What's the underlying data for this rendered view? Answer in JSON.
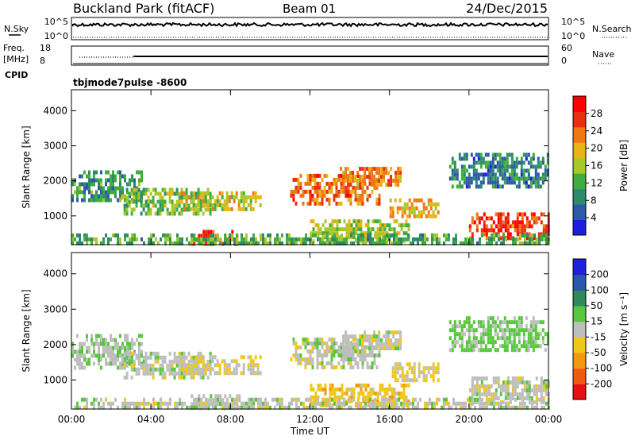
{
  "header": {
    "site": "Buckland Park (fitACF)",
    "beam": "Beam 01",
    "date": "24/Dec/2015"
  },
  "strip_labels": {
    "nsky": "N.Sky",
    "nsearch": "N.Search",
    "freq_line1": "Freq.",
    "freq_line2": "[MHz]",
    "nave": "Nave",
    "cpid": "CPID"
  },
  "strip_ticks": {
    "noise_left": [
      "10^5",
      "10^0"
    ],
    "noise_right": [
      "10^5",
      "10^0"
    ],
    "freq_left": [
      "18",
      "8"
    ],
    "nave_right": [
      "60",
      "0"
    ]
  },
  "cpid_label": "tbjmode7pulse  -8600",
  "colors": {
    "power": [
      "#1e1edc",
      "#2a5aa8",
      "#2f8a6a",
      "#3fae3f",
      "#a8c82a",
      "#e8b418",
      "#f07814",
      "#e83010",
      "#ff0000"
    ],
    "velocity": [
      "#e81010",
      "#f05a14",
      "#f09a14",
      "#f0c818",
      "#bebebe",
      "#56c83c",
      "#2e8a5a",
      "#2a58a8",
      "#2020d8"
    ]
  },
  "chart_data": [
    {
      "type": "heatmap",
      "name": "power",
      "ylabel": "Slant Range [km]",
      "yticks": [
        "1000",
        "2000",
        "3000",
        "4000"
      ],
      "ylim": [
        180,
        4600
      ],
      "xticks": [
        "00:00",
        "04:00",
        "08:00",
        "12:00",
        "16:00",
        "20:00",
        "00:00"
      ],
      "colorbar_label": "Power [dB]",
      "colorbar_ticks": [
        "4",
        "8",
        "12",
        "16",
        "20",
        "24",
        "28"
      ],
      "colorbar_range": [
        0,
        32
      ],
      "echo_bands": [
        {
          "t0": 0.0,
          "t1": 3.5,
          "r0": 1400,
          "r1": 2300,
          "level": 10
        },
        {
          "t0": 2.5,
          "t1": 7.0,
          "r0": 1100,
          "r1": 1800,
          "level": 14
        },
        {
          "t0": 5.5,
          "t1": 9.5,
          "r0": 1200,
          "r1": 1700,
          "level": 18
        },
        {
          "t0": 11.0,
          "t1": 15.5,
          "r0": 1400,
          "r1": 2200,
          "level": 24
        },
        {
          "t0": 13.5,
          "t1": 16.5,
          "r0": 1900,
          "r1": 2400,
          "level": 22
        },
        {
          "t0": 16.0,
          "t1": 18.5,
          "r0": 1000,
          "r1": 1500,
          "level": 20
        },
        {
          "t0": 20.0,
          "t1": 24.0,
          "r0": 400,
          "r1": 1100,
          "level": 26
        },
        {
          "t0": 6.0,
          "t1": 8.5,
          "r0": 200,
          "r1": 600,
          "level": 28
        },
        {
          "t0": 12.0,
          "t1": 17.0,
          "r0": 300,
          "r1": 900,
          "level": 16
        },
        {
          "t0": 0.0,
          "t1": 24.0,
          "r0": 180,
          "r1": 500,
          "level": 12
        },
        {
          "t0": 19.0,
          "t1": 24.0,
          "r0": 1800,
          "r1": 2800,
          "level": 8
        }
      ]
    },
    {
      "type": "heatmap",
      "name": "velocity",
      "ylabel": "Slant Range [km]",
      "yticks": [
        "1000",
        "2000",
        "3000",
        "4000"
      ],
      "ylim": [
        180,
        4600
      ],
      "xlabel": "Time UT",
      "xticks": [
        "00:00",
        "04:00",
        "08:00",
        "12:00",
        "16:00",
        "20:00",
        "00:00"
      ],
      "colorbar_label": "Velocity [m s⁻¹]",
      "colorbar_ticks": [
        "-200",
        "-100",
        "-50",
        "-15",
        "15",
        "50",
        "100",
        "200"
      ],
      "colorbar_range": [
        -250,
        250
      ],
      "echo_bands": [
        {
          "t0": 0.0,
          "t1": 3.5,
          "r0": 1400,
          "r1": 2300,
          "level": 15
        },
        {
          "t0": 2.5,
          "t1": 7.0,
          "r0": 1100,
          "r1": 1800,
          "level": 0
        },
        {
          "t0": 5.5,
          "t1": 9.5,
          "r0": 1200,
          "r1": 1700,
          "level": -20
        },
        {
          "t0": 11.0,
          "t1": 15.5,
          "r0": 1400,
          "r1": 2200,
          "level": 0
        },
        {
          "t0": 13.5,
          "t1": 16.5,
          "r0": 1900,
          "r1": 2400,
          "level": 0
        },
        {
          "t0": 16.0,
          "t1": 18.5,
          "r0": 1000,
          "r1": 1500,
          "level": -30
        },
        {
          "t0": 20.0,
          "t1": 24.0,
          "r0": 400,
          "r1": 1100,
          "level": 0
        },
        {
          "t0": 6.0,
          "t1": 8.5,
          "r0": 200,
          "r1": 600,
          "level": 0
        },
        {
          "t0": 12.0,
          "t1": 17.0,
          "r0": 300,
          "r1": 900,
          "level": -60
        },
        {
          "t0": 0.0,
          "t1": 24.0,
          "r0": 180,
          "r1": 500,
          "level": 0
        },
        {
          "t0": 19.0,
          "t1": 24.0,
          "r0": 1800,
          "r1": 2800,
          "level": 40
        }
      ]
    }
  ]
}
